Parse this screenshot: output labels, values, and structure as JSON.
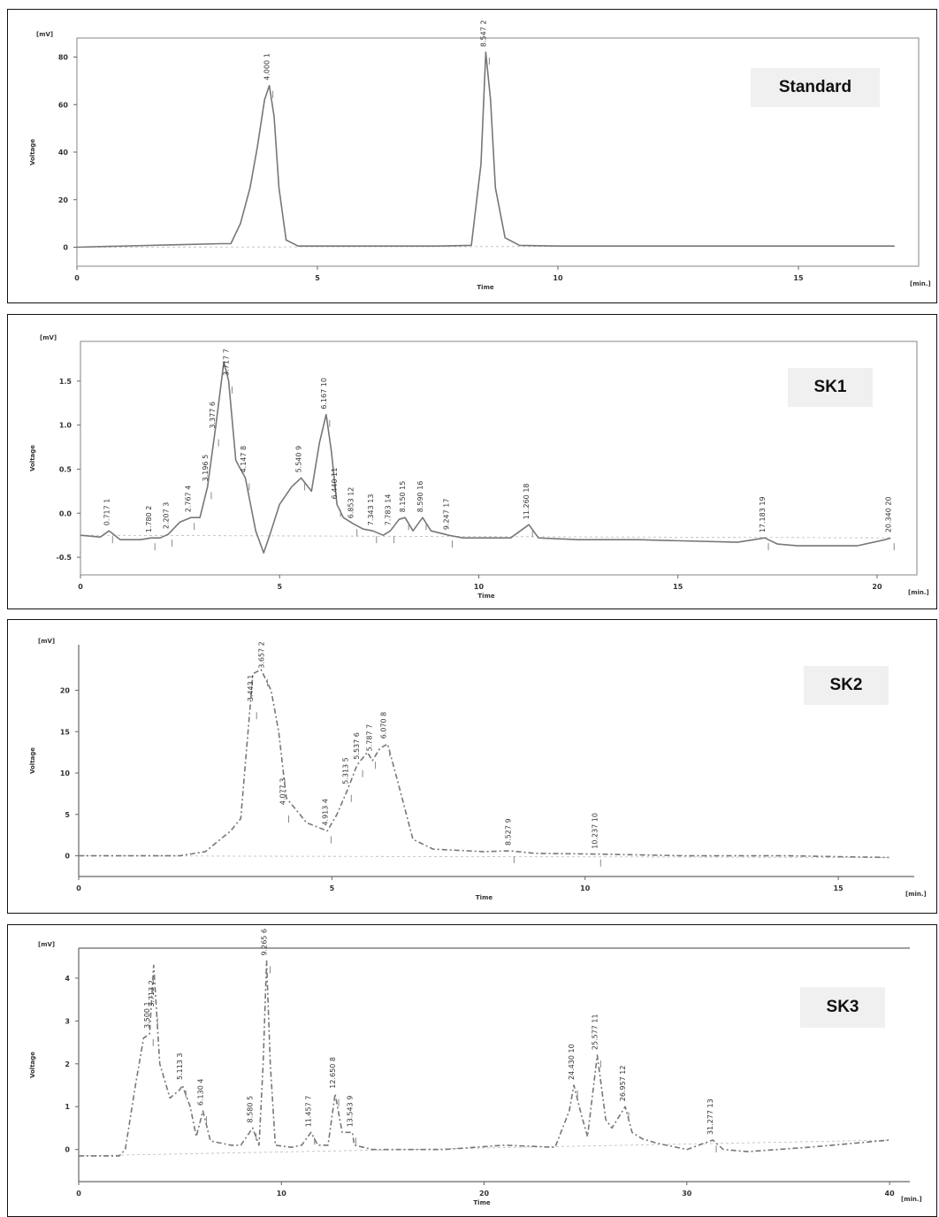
{
  "chart_data": [
    {
      "type": "line",
      "label": "Standard",
      "xlabel": "Time",
      "ylabel": "Voltage",
      "yunit": "[mV]",
      "xunit": "[min.]",
      "xlim": [
        0,
        17.5
      ],
      "ylim": [
        -8,
        88
      ],
      "xticks": [
        0,
        5,
        10,
        15
      ],
      "yticks": [
        0,
        20,
        40,
        60,
        80
      ],
      "x": [
        0,
        2,
        3,
        3.2,
        3.4,
        3.6,
        3.75,
        3.9,
        4.0,
        4.1,
        4.2,
        4.35,
        4.6,
        5.5,
        7.5,
        8.2,
        8.4,
        8.5,
        8.6,
        8.7,
        8.9,
        9.2,
        10,
        13,
        15,
        17
      ],
      "y": [
        0,
        1,
        1.5,
        1.5,
        10,
        25,
        42,
        62,
        68,
        55,
        25,
        3,
        0.5,
        0.5,
        0.5,
        0.8,
        35,
        82,
        62,
        25,
        4,
        0.8,
        0.5,
        0.5,
        0.5,
        0.5
      ],
      "peaks": [
        {
          "time": 4.0,
          "height": 68,
          "label": "4.000  1"
        },
        {
          "time": 8.5,
          "height": 82,
          "label": "8.547  2"
        }
      ]
    },
    {
      "type": "line",
      "label": "SK1",
      "xlabel": "Time",
      "ylabel": "Voltage",
      "yunit": "[mV]",
      "xunit": "[min.]",
      "xlim": [
        0,
        21
      ],
      "ylim": [
        -0.7,
        1.95
      ],
      "xticks": [
        0,
        5,
        10,
        15,
        20
      ],
      "yticks": [
        -0.5,
        0.0,
        0.5,
        1.0,
        1.5
      ],
      "yticklabels": [
        "-0.5",
        "0.0",
        "0.5",
        "1.0",
        "1.5"
      ],
      "x": [
        0,
        0.5,
        0.72,
        1.0,
        1.5,
        1.78,
        2.0,
        2.2,
        2.5,
        2.77,
        3.0,
        3.19,
        3.4,
        3.6,
        3.72,
        3.9,
        4.14,
        4.4,
        4.6,
        4.75,
        5.0,
        5.3,
        5.54,
        5.8,
        6.0,
        6.17,
        6.3,
        6.44,
        6.6,
        6.85,
        7.1,
        7.34,
        7.6,
        7.78,
        8.0,
        8.15,
        8.35,
        8.59,
        8.8,
        9.25,
        9.6,
        10.0,
        10.8,
        11.26,
        11.5,
        12.5,
        14,
        16.5,
        17.18,
        17.5,
        18,
        19.5,
        20.2,
        20.34
      ],
      "y": [
        -0.25,
        -0.27,
        -0.2,
        -0.3,
        -0.3,
        -0.28,
        -0.28,
        -0.24,
        -0.1,
        -0.05,
        -0.05,
        0.3,
        1.0,
        1.72,
        1.5,
        0.6,
        0.4,
        -0.2,
        -0.45,
        -0.25,
        0.1,
        0.3,
        0.4,
        0.25,
        0.8,
        1.12,
        0.7,
        0.1,
        -0.05,
        -0.12,
        -0.18,
        -0.2,
        -0.25,
        -0.2,
        -0.07,
        -0.05,
        -0.2,
        -0.05,
        -0.2,
        -0.25,
        -0.28,
        -0.28,
        -0.28,
        -0.13,
        -0.28,
        -0.3,
        -0.3,
        -0.33,
        -0.28,
        -0.35,
        -0.37,
        -0.37,
        -0.3,
        -0.28
      ],
      "peaks": [
        {
          "time": 0.717,
          "height": -0.2,
          "label": "0.717  1"
        },
        {
          "time": 1.78,
          "height": -0.28,
          "label": "1.780  2"
        },
        {
          "time": 2.207,
          "height": -0.24,
          "label": "2.207  3"
        },
        {
          "time": 2.767,
          "height": -0.05,
          "label": "2.767  4"
        },
        {
          "time": 3.196,
          "height": 0.3,
          "label": "3.196  5"
        },
        {
          "time": 3.377,
          "height": 0.9,
          "label": "3.377  6"
        },
        {
          "time": 3.717,
          "height": 1.5,
          "label": "3.717  7"
        },
        {
          "time": 4.147,
          "height": 0.4,
          "label": "4.147  8"
        },
        {
          "time": 5.54,
          "height": 0.4,
          "label": "5.540  9"
        },
        {
          "time": 6.167,
          "height": 1.12,
          "label": "6.167  10"
        },
        {
          "time": 6.44,
          "height": 0.1,
          "label": "6.440  11"
        },
        {
          "time": 6.853,
          "height": -0.12,
          "label": "6.853  12"
        },
        {
          "time": 7.343,
          "height": -0.2,
          "label": "7.343  13"
        },
        {
          "time": 7.783,
          "height": -0.2,
          "label": "7.783  14"
        },
        {
          "time": 8.15,
          "height": -0.05,
          "label": "8.150  15"
        },
        {
          "time": 8.59,
          "height": -0.05,
          "label": "8.590  16"
        },
        {
          "time": 9.247,
          "height": -0.25,
          "label": "9.247  17"
        },
        {
          "time": 11.26,
          "height": -0.13,
          "label": "11.260  18"
        },
        {
          "time": 17.183,
          "height": -0.28,
          "label": "17.183  19"
        },
        {
          "time": 20.34,
          "height": -0.28,
          "label": "20.340  20"
        }
      ]
    },
    {
      "type": "line",
      "label": "SK2",
      "xlabel": "Time",
      "ylabel": "Voltage",
      "yunit": "[mV]",
      "xunit": "[min.]",
      "xlim": [
        0,
        16.5
      ],
      "ylim": [
        -2.5,
        25.5
      ],
      "xticks": [
        0,
        5,
        10,
        15
      ],
      "yticks": [
        0,
        5,
        10,
        15,
        20
      ],
      "x": [
        0,
        1.2,
        2.0,
        2.5,
        3.0,
        3.2,
        3.44,
        3.6,
        3.8,
        3.95,
        4.1,
        4.3,
        4.5,
        4.91,
        5.1,
        5.31,
        5.5,
        5.7,
        5.8,
        5.95,
        6.1,
        6.3,
        6.6,
        7.0,
        8.0,
        8.52,
        9.0,
        10.24,
        12,
        14,
        16
      ],
      "y": [
        0,
        0,
        0,
        0.5,
        3,
        4.5,
        22,
        22.5,
        20,
        15,
        7,
        5.5,
        4,
        3,
        5,
        8,
        11,
        12.5,
        11.5,
        13,
        13.5,
        9,
        2,
        0.8,
        0.5,
        0.6,
        0.3,
        0.2,
        0,
        0,
        -0.2
      ],
      "peaks": [
        {
          "time": 3.443,
          "height": 18,
          "label": "3.443  1"
        },
        {
          "time": 3.657,
          "height": 22,
          "label": "3.657  2"
        },
        {
          "time": 4.077,
          "height": 5.5,
          "label": "4.077  3"
        },
        {
          "time": 4.913,
          "height": 3,
          "label": "4.913  4"
        },
        {
          "time": 5.313,
          "height": 8,
          "label": "5.313  5"
        },
        {
          "time": 5.537,
          "height": 11,
          "label": "5.537  6"
        },
        {
          "time": 5.787,
          "height": 12,
          "label": "5.787  7"
        },
        {
          "time": 6.07,
          "height": 13.5,
          "label": "6.070  8"
        },
        {
          "time": 8.527,
          "height": 0.6,
          "label": "8.527  9"
        },
        {
          "time": 10.237,
          "height": 0.2,
          "label": "10.237  10"
        }
      ]
    },
    {
      "type": "line",
      "label": "SK3",
      "xlabel": "Time",
      "ylabel": "Voltage",
      "yunit": "[mV]",
      "xunit": "[min.]",
      "xlim": [
        0,
        41
      ],
      "ylim": [
        -0.75,
        4.7
      ],
      "xticks": [
        0,
        10,
        20,
        30,
        40
      ],
      "yticks": [
        0,
        1,
        2,
        3,
        4
      ],
      "x": [
        0,
        2,
        2.3,
        2.8,
        3.2,
        3.5,
        3.7,
        4.0,
        4.5,
        5.0,
        5.11,
        5.5,
        5.8,
        6.13,
        6.5,
        7.5,
        8.0,
        8.58,
        8.9,
        9.1,
        9.27,
        9.45,
        9.7,
        10.5,
        11.0,
        11.46,
        11.8,
        12.3,
        12.65,
        13.0,
        13.5,
        13.6,
        14.5,
        18,
        21,
        23.5,
        24.2,
        24.43,
        24.8,
        25.1,
        25.58,
        26.0,
        26.3,
        26.7,
        26.96,
        27.3,
        27.8,
        28.5,
        30,
        31.28,
        31.8,
        33,
        36,
        40
      ],
      "y": [
        -0.15,
        -0.15,
        0,
        1.5,
        2.6,
        2.7,
        4.3,
        2.0,
        1.2,
        1.4,
        1.5,
        1.0,
        0.3,
        0.9,
        0.2,
        0.1,
        0.1,
        0.5,
        0.1,
        2.0,
        4.4,
        2.0,
        0.1,
        0.05,
        0.1,
        0.4,
        0.1,
        0.1,
        1.3,
        0.4,
        0.4,
        0.1,
        0.0,
        0.0,
        0.1,
        0.05,
        0.9,
        1.5,
        0.8,
        0.3,
        2.2,
        0.7,
        0.5,
        0.8,
        1.0,
        0.4,
        0.25,
        0.15,
        0.0,
        0.22,
        0.0,
        -0.05,
        0.05,
        0.22
      ],
      "peaks": [
        {
          "time": 3.5,
          "height": 2.7,
          "label": "3.500  1"
        },
        {
          "time": 3.713,
          "height": 3.2,
          "label": "3.713  2"
        },
        {
          "time": 5.113,
          "height": 1.5,
          "label": "5.113  3"
        },
        {
          "time": 6.13,
          "height": 0.9,
          "label": "6.130  4"
        },
        {
          "time": 8.58,
          "height": 0.5,
          "label": "8.580  5"
        },
        {
          "time": 9.27,
          "height": 4.4,
          "label": "9.265  6"
        },
        {
          "time": 11.457,
          "height": 0.4,
          "label": "11.457  7"
        },
        {
          "time": 12.65,
          "height": 1.3,
          "label": "12.650  8"
        },
        {
          "time": 13.5,
          "height": 0.4,
          "label": "13.543  9"
        },
        {
          "time": 24.43,
          "height": 1.5,
          "label": "24.430  10"
        },
        {
          "time": 25.577,
          "height": 2.2,
          "label": "25.577  11"
        },
        {
          "time": 26.957,
          "height": 1.0,
          "label": "26.957  12"
        },
        {
          "time": 31.277,
          "height": 0.22,
          "label": "31.277  13"
        }
      ]
    }
  ]
}
